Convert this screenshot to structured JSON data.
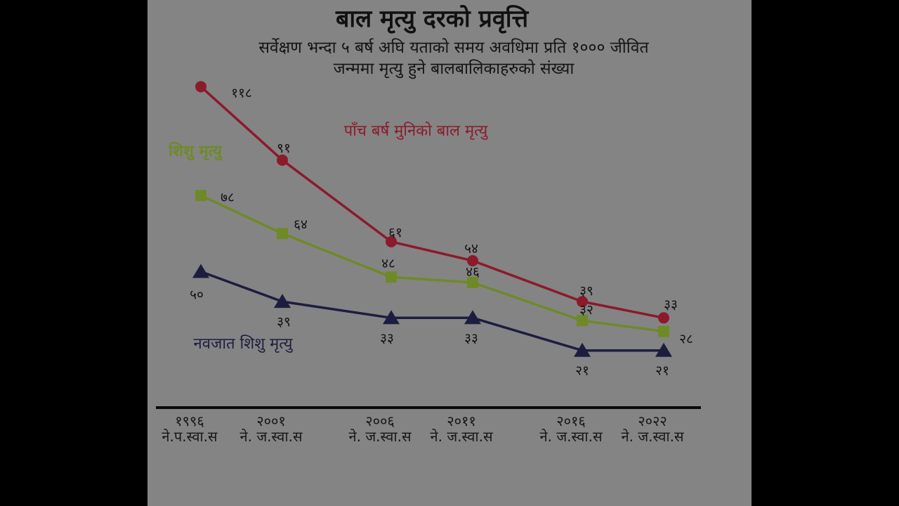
{
  "page": {
    "title": "बाल मृत्यु दरको प्रवृत्ति",
    "subtitle_line1": "सर्वेक्षण भन्दा ५ बर्ष अघि यताको समय अवधिमा  प्रति १००० जीवित",
    "subtitle_line2": "जन्ममा मृत्यु हुने बालबालिकाहरुको संख्या",
    "background": "#848484",
    "letterbox_color": "#000000"
  },
  "chart_data": {
    "type": "line",
    "title": "बाल मृत्यु दरको प्रवृत्ति",
    "xlabel": "",
    "ylabel": "",
    "ylim": [
      0,
      125
    ],
    "grid": false,
    "legend": "inline labels",
    "categories": [
      {
        "year": "१९९६",
        "source": "ने.प.स्वा.स"
      },
      {
        "year": "२००१",
        "source": "ने. ज.स्वा.स"
      },
      {
        "year": "२००६",
        "source": "ने. ज.स्वा.स"
      },
      {
        "year": "२०११",
        "source": "ने. ज.स्वा.स"
      },
      {
        "year": "२०१६",
        "source": "ने. ज.स्वा.स"
      },
      {
        "year": "२०२२",
        "source": "ने. ज.स्वा.स"
      }
    ],
    "series": [
      {
        "name": "पाँच बर्ष मुनिको बाल मृत्यु",
        "color": "#8b1a2b",
        "marker": "circle",
        "values": [
          118,
          91,
          61,
          54,
          39,
          33
        ],
        "labels": [
          "११८",
          "९१",
          "६१",
          "५४",
          "३९",
          "३३"
        ]
      },
      {
        "name": "शिशु मृत्यु",
        "color": "#6e8a28",
        "marker": "square",
        "values": [
          78,
          64,
          48,
          46,
          32,
          28
        ],
        "labels": [
          "७८",
          "६४",
          "४८",
          "४६",
          "३२",
          "२८"
        ]
      },
      {
        "name": "नवजात शिशु मृत्यु",
        "color": "#1d1d40",
        "marker": "triangle",
        "values": [
          50,
          39,
          33,
          33,
          21,
          21
        ],
        "labels": [
          "५०",
          "३९",
          "३३",
          "३३",
          "२१",
          "२१"
        ]
      }
    ]
  }
}
